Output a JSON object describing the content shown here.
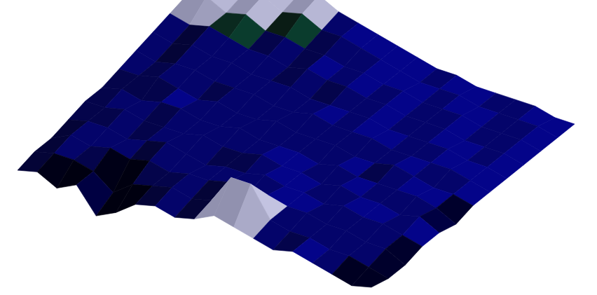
{
  "chart_data": {
    "type": "surface",
    "color": "#000080",
    "grid": false,
    "tick_labels": false,
    "heights": [
      [
        0,
        1,
        -1,
        1,
        -4,
        -2,
        1,
        2,
        1,
        2,
        4,
        3,
        2,
        1,
        2,
        1,
        0,
        -1,
        0
      ],
      [
        1,
        2,
        2,
        1,
        -2,
        1,
        2,
        3,
        2,
        3,
        9,
        9,
        3,
        2,
        2,
        1,
        1,
        0,
        -1
      ],
      [
        1,
        3,
        2,
        3,
        2,
        3,
        2,
        3,
        3,
        4,
        3,
        4,
        3,
        3,
        2,
        2,
        1,
        1,
        -1
      ],
      [
        2,
        3,
        3,
        2,
        3,
        4,
        3,
        2,
        3,
        3,
        4,
        3,
        3,
        2,
        3,
        2,
        2,
        1,
        0
      ],
      [
        3,
        3,
        4,
        3,
        3,
        3,
        4,
        3,
        3,
        4,
        3,
        3,
        2,
        3,
        2,
        2,
        1,
        2,
        0
      ],
      [
        3,
        4,
        3,
        4,
        4,
        3,
        3,
        4,
        3,
        3,
        3,
        2,
        3,
        2,
        2,
        2,
        2,
        1,
        -1
      ],
      [
        4,
        4,
        5,
        4,
        3,
        4,
        3,
        3,
        4,
        3,
        3,
        3,
        2,
        2,
        3,
        2,
        1,
        1,
        0
      ],
      [
        5,
        4,
        5,
        5,
        4,
        4,
        4,
        3,
        3,
        4,
        3,
        3,
        3,
        2,
        2,
        2,
        2,
        1,
        0
      ],
      [
        6,
        5,
        6,
        5,
        5,
        4,
        4,
        4,
        3,
        3,
        3,
        3,
        2,
        2,
        2,
        2,
        1,
        1,
        0
      ],
      [
        7,
        6,
        7,
        6,
        5,
        5,
        4,
        5,
        4,
        4,
        3,
        3,
        2,
        2,
        2,
        1,
        1,
        1,
        0
      ],
      [
        8,
        9,
        7,
        8,
        6,
        6,
        5,
        5,
        4,
        4,
        3,
        3,
        2,
        2,
        2,
        1,
        1,
        1,
        0
      ],
      [
        9,
        10,
        8,
        9,
        7,
        8,
        6,
        6,
        5,
        4,
        3,
        2,
        2,
        2,
        1,
        1,
        1,
        1,
        0
      ],
      [
        8,
        11,
        9,
        10,
        8,
        9,
        7,
        6,
        5,
        4,
        3,
        2,
        2,
        1,
        1,
        1,
        1,
        0,
        0
      ]
    ]
  }
}
